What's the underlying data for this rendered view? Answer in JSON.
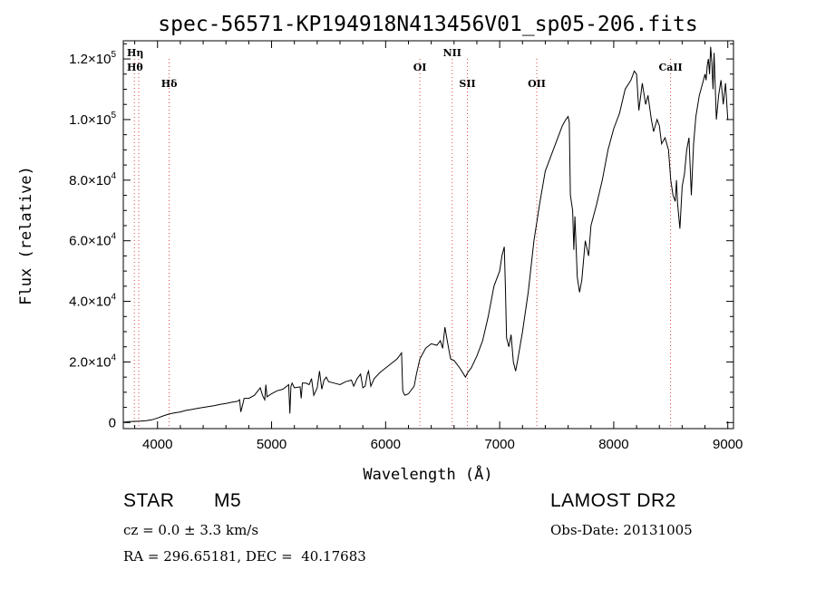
{
  "chart_data": {
    "type": "line",
    "title": "spec-56571-KP194918N413456V01_sp05-206.fits",
    "xlabel": "Wavelength (Å)",
    "ylabel": "Flux (relative)",
    "xlim": [
      3700,
      9050
    ],
    "ylim": [
      -2000,
      126000
    ],
    "x_ticks": [
      4000,
      5000,
      6000,
      7000,
      8000,
      9000
    ],
    "x_tick_labels": [
      "4000",
      "5000",
      "6000",
      "7000",
      "8000",
      "9000"
    ],
    "y_ticks": [
      0,
      20000,
      40000,
      60000,
      80000,
      100000,
      120000
    ],
    "y_tick_labels": [
      {
        "mant": "0",
        "exp": ""
      },
      {
        "mant": "2.0×10",
        "exp": "4"
      },
      {
        "mant": "4.0×10",
        "exp": "4"
      },
      {
        "mant": "6.0×10",
        "exp": "4"
      },
      {
        "mant": "8.0×10",
        "exp": "4"
      },
      {
        "mant": "1.0×10",
        "exp": "5"
      },
      {
        "mant": "1.2×10",
        "exp": "5"
      }
    ],
    "grid": false,
    "line_color": "#000000",
    "line_marker_color": "#e04040",
    "line_markers": [
      {
        "label": "Hη",
        "wavelength": 3835,
        "row": 1
      },
      {
        "label": "Hθ",
        "wavelength": 3797,
        "row": 2
      },
      {
        "label": "Hδ",
        "wavelength": 4102,
        "row": 3
      },
      {
        "label": "OI",
        "wavelength": 6300,
        "row": 2
      },
      {
        "label": "NII",
        "wavelength": 6584,
        "row": 1
      },
      {
        "label": "SII",
        "wavelength": 6717,
        "row": 3
      },
      {
        "label": "OII",
        "wavelength": 7325,
        "row": 3
      },
      {
        "label": "CaII",
        "wavelength": 8498,
        "row": 2
      }
    ],
    "series": [
      {
        "x": [
          3700,
          3750,
          3800,
          3850,
          3900,
          3950,
          4000,
          4050,
          4100,
          4150,
          4200,
          4250,
          4300,
          4350,
          4400,
          4450,
          4500,
          4550,
          4600,
          4650,
          4700,
          4720,
          4730,
          4750,
          4760,
          4800,
          4850,
          4900,
          4920,
          4940,
          4950,
          4960,
          4980,
          5000,
          5050,
          5100,
          5150,
          5160,
          5170,
          5180,
          5200,
          5250,
          5260,
          5270,
          5300,
          5330,
          5350,
          5370,
          5400,
          5420,
          5440,
          5460,
          5480,
          5500,
          5550,
          5600,
          5650,
          5700,
          5720,
          5750,
          5780,
          5800,
          5820,
          5840,
          5850,
          5870,
          5900,
          5950,
          6000,
          6050,
          6100,
          6120,
          6140,
          6150,
          6160,
          6170,
          6200,
          6250,
          6270,
          6300,
          6350,
          6400,
          6450,
          6480,
          6500,
          6520,
          6540,
          6550,
          6570,
          6600,
          6650,
          6700,
          6720,
          6750,
          6800,
          6850,
          6900,
          6950,
          7000,
          7020,
          7040,
          7050,
          7060,
          7080,
          7100,
          7120,
          7140,
          7160,
          7200,
          7250,
          7300,
          7350,
          7400,
          7430,
          7450,
          7500,
          7550,
          7580,
          7600,
          7610,
          7620,
          7640,
          7650,
          7660,
          7680,
          7700,
          7720,
          7750,
          7780,
          7800,
          7850,
          7900,
          7950,
          8000,
          8050,
          8100,
          8150,
          8180,
          8200,
          8220,
          8250,
          8280,
          8300,
          8330,
          8350,
          8380,
          8400,
          8420,
          8450,
          8480,
          8500,
          8520,
          8540,
          8550,
          8560,
          8580,
          8600,
          8620,
          8640,
          8660,
          8680,
          8700,
          8720,
          8750,
          8780,
          8800,
          8810,
          8820,
          8830,
          8840,
          8850,
          8860,
          8870,
          8880,
          8900,
          8920,
          8940,
          8960,
          8980,
          9000
        ],
        "y": [
          100,
          300,
          400,
          450,
          600,
          900,
          1500,
          2200,
          2800,
          3200,
          3500,
          4000,
          4300,
          4700,
          5000,
          5300,
          5600,
          6000,
          6300,
          6700,
          7000,
          7500,
          3500,
          6500,
          8000,
          8000,
          9000,
          11500,
          9000,
          7500,
          12500,
          8500,
          9000,
          9500,
          10500,
          11000,
          12500,
          3000,
          12000,
          13000,
          11500,
          11800,
          8000,
          13000,
          13000,
          12500,
          14500,
          9000,
          11500,
          17000,
          11000,
          14000,
          15000,
          13500,
          13000,
          12500,
          13500,
          14000,
          12000,
          14500,
          16000,
          11500,
          12000,
          16000,
          17000,
          12000,
          14500,
          16500,
          18000,
          19500,
          21000,
          22000,
          23000,
          10500,
          9500,
          9000,
          9500,
          12000,
          16000,
          21000,
          24500,
          26000,
          25500,
          27000,
          24500,
          31500,
          27000,
          25000,
          21000,
          20500,
          18000,
          15000,
          16500,
          18000,
          22000,
          27000,
          35000,
          45000,
          50000,
          55000,
          58000,
          45000,
          28000,
          25000,
          29000,
          20000,
          17000,
          21000,
          30000,
          43000,
          60000,
          72000,
          83000,
          86000,
          88000,
          93000,
          98000,
          100000,
          101000,
          99000,
          75000,
          70000,
          57000,
          68000,
          48000,
          43000,
          47000,
          60000,
          55000,
          65000,
          72000,
          80000,
          90000,
          97000,
          102000,
          110000,
          113000,
          116000,
          115000,
          103000,
          112000,
          105000,
          108000,
          100000,
          96000,
          100000,
          98000,
          92000,
          94000,
          90000,
          80000,
          75000,
          73000,
          80000,
          72000,
          64000,
          78000,
          82000,
          90000,
          94000,
          75000,
          92000,
          101000,
          108000,
          112000,
          115000,
          113000,
          118000,
          120000,
          115000,
          124000,
          119000,
          110000,
          122000,
          100000,
          108000,
          113000,
          105000,
          112000,
          100000
        ]
      }
    ]
  },
  "info": {
    "object_class": "STAR",
    "subclass": "M5",
    "survey": "LAMOST DR2",
    "cz": "cz = 0.0 ± 3.3 km/s",
    "obs_date": "Obs-Date: 20131005",
    "ra_dec": "RA = 296.65181, DEC =  40.17683"
  }
}
